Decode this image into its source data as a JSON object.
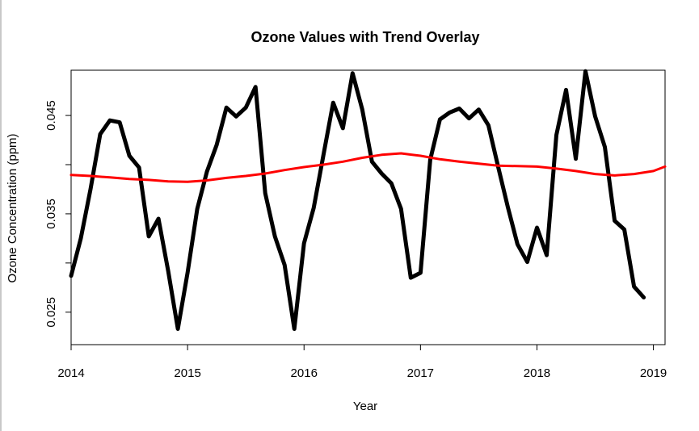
{
  "chart_data": {
    "type": "line",
    "title": "Ozone Values with Trend Overlay",
    "xlabel": "Year",
    "ylabel": "Ozone Concentration (ppm)",
    "xlim": [
      2014,
      2019.1
    ],
    "ylim": [
      0.0217,
      0.0496
    ],
    "x_ticks": [
      "2014",
      "2015",
      "2016",
      "2017",
      "2018",
      "2019"
    ],
    "y_ticks": [
      "0.025",
      "0.035",
      "0.045"
    ],
    "series": [
      {
        "color": "#000000",
        "x": [
          2014.0,
          2014.0833,
          2014.1667,
          2014.25,
          2014.3333,
          2014.4167,
          2014.5,
          2014.5833,
          2014.6667,
          2014.75,
          2014.8333,
          2014.9167,
          2015.0,
          2015.0833,
          2015.1667,
          2015.25,
          2015.3333,
          2015.4167,
          2015.5,
          2015.5833,
          2015.6667,
          2015.75,
          2015.8333,
          2015.9167,
          2016.0,
          2016.0833,
          2016.1667,
          2016.25,
          2016.3333,
          2016.4167,
          2016.5,
          2016.5833,
          2016.6667,
          2016.75,
          2016.8333,
          2016.9167,
          2017.0,
          2017.0833,
          2017.1667,
          2017.25,
          2017.3333,
          2017.4167,
          2017.5,
          2017.5833,
          2017.6667,
          2017.75,
          2017.8333,
          2017.9167,
          2018.0,
          2018.0833,
          2018.1667,
          2018.25,
          2018.3333,
          2018.4167,
          2018.5,
          2018.5833,
          2018.6667,
          2018.75,
          2018.8333,
          2018.9167
        ],
        "values": [
          0.0287,
          0.0325,
          0.0375,
          0.0431,
          0.0445,
          0.0443,
          0.0409,
          0.0397,
          0.0327,
          0.0345,
          0.0292,
          0.0233,
          0.029,
          0.0355,
          0.0393,
          0.042,
          0.0458,
          0.0449,
          0.0458,
          0.0479,
          0.0371,
          0.0327,
          0.0298,
          0.0233,
          0.032,
          0.0356,
          0.041,
          0.0463,
          0.0437,
          0.0493,
          0.0456,
          0.0403,
          0.0391,
          0.0381,
          0.0355,
          0.0285,
          0.029,
          0.0405,
          0.0446,
          0.0453,
          0.0457,
          0.0447,
          0.0456,
          0.044,
          0.0398,
          0.0357,
          0.0319,
          0.0301,
          0.0336,
          0.0308,
          0.043,
          0.0476,
          0.0406,
          0.0495,
          0.0449,
          0.0418,
          0.0343,
          0.0334,
          0.0276,
          0.0265
        ]
      },
      {
        "color": "#ff0000",
        "x": [
          2014.0,
          2014.1667,
          2014.3333,
          2014.5,
          2014.6667,
          2014.8333,
          2015.0,
          2015.1667,
          2015.3333,
          2015.5,
          2015.6667,
          2015.8333,
          2016.0,
          2016.1667,
          2016.3333,
          2016.5,
          2016.6667,
          2016.8333,
          2017.0,
          2017.1667,
          2017.3333,
          2017.5,
          2017.6667,
          2017.8333,
          2018.0,
          2018.1667,
          2018.3333,
          2018.5,
          2018.6667,
          2018.8333,
          2019.0,
          2019.1
        ],
        "values": [
          0.03895,
          0.03885,
          0.0387,
          0.03855,
          0.03845,
          0.0383,
          0.03825,
          0.0384,
          0.03865,
          0.03885,
          0.0391,
          0.03945,
          0.03975,
          0.04,
          0.0403,
          0.0407,
          0.041,
          0.04115,
          0.0409,
          0.04055,
          0.0403,
          0.0401,
          0.0399,
          0.03985,
          0.0398,
          0.0396,
          0.03935,
          0.03905,
          0.0389,
          0.03905,
          0.03935,
          0.0398
        ]
      }
    ]
  }
}
